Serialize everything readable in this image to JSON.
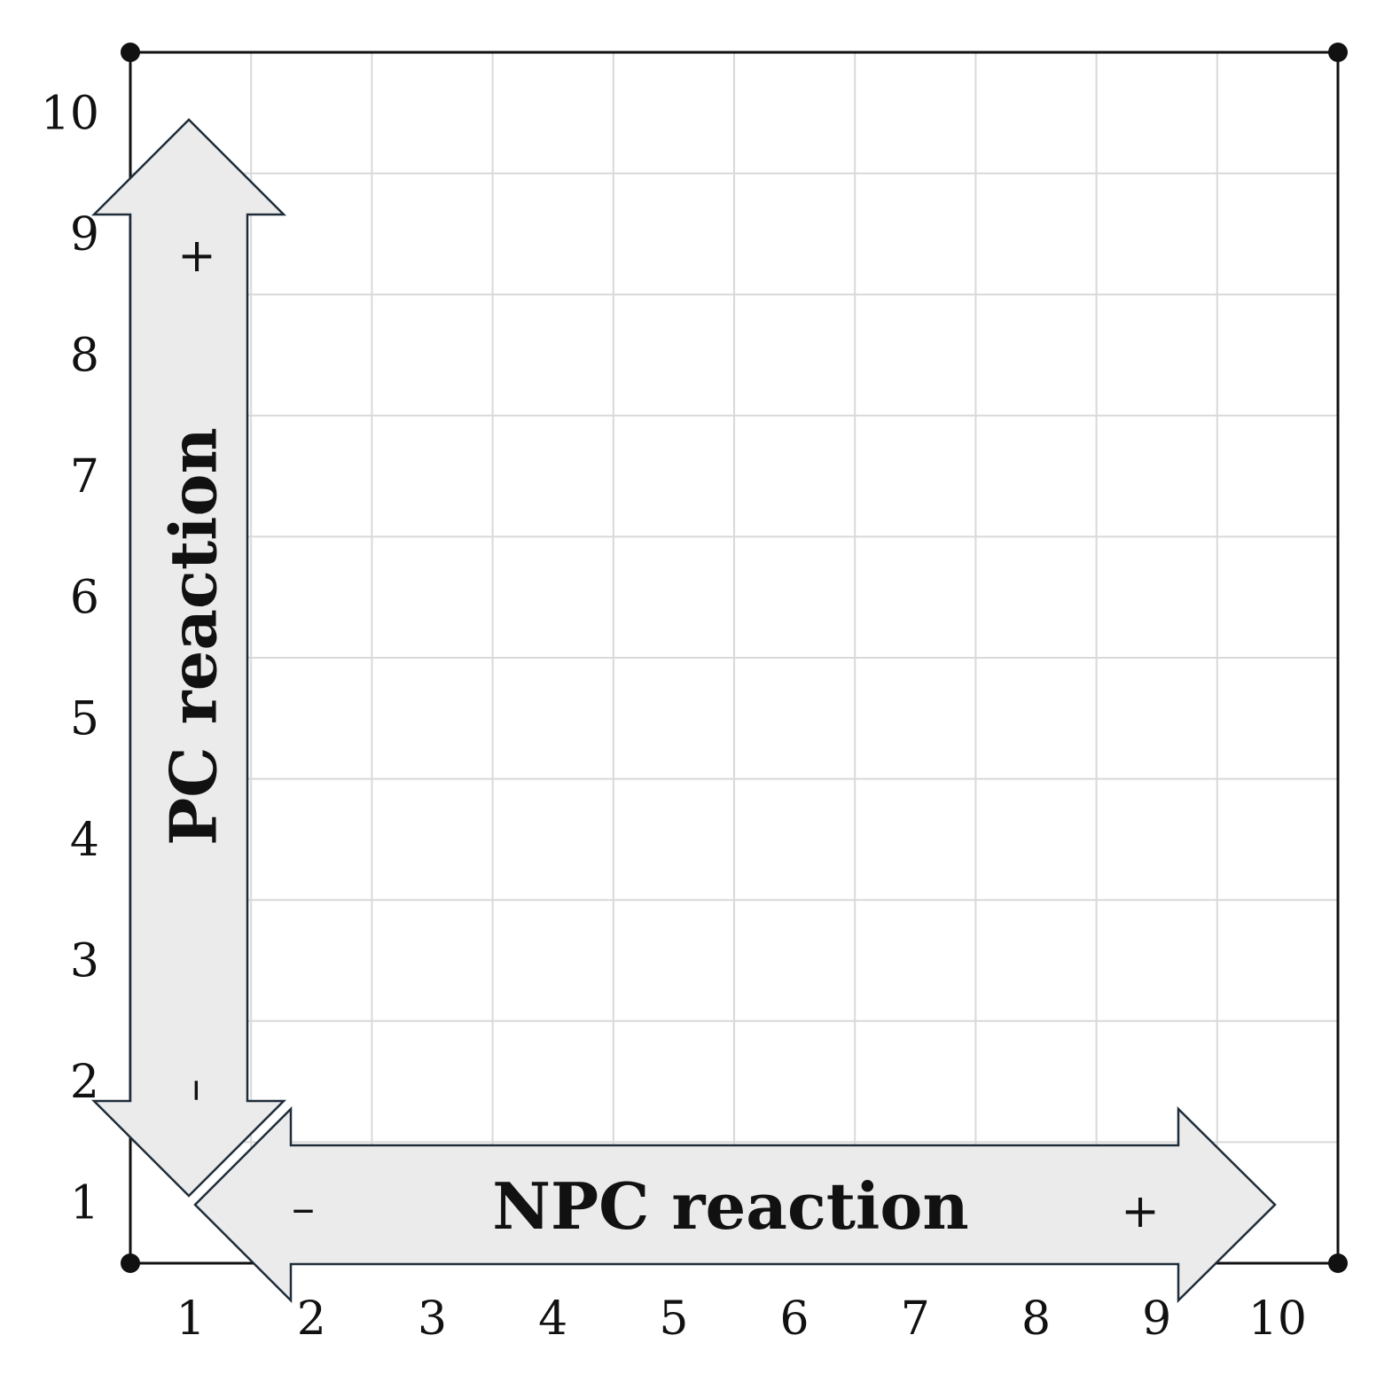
{
  "grid": {
    "x_ticks": [
      "1",
      "2",
      "3",
      "4",
      "5",
      "6",
      "7",
      "8",
      "9",
      "10"
    ],
    "y_ticks": [
      "1",
      "2",
      "3",
      "4",
      "5",
      "6",
      "7",
      "8",
      "9",
      "10"
    ],
    "colors": {
      "grid": "#d9d9d9",
      "frame": "#111111",
      "arrow_fill": "#ebebeb",
      "arrow_stroke": "#1f2d3a"
    }
  },
  "arrows": {
    "horizontal": {
      "title": "NPC reaction",
      "minus": "–",
      "plus": "+"
    },
    "vertical": {
      "title": "PC reaction",
      "minus": "–",
      "plus": "+"
    }
  }
}
